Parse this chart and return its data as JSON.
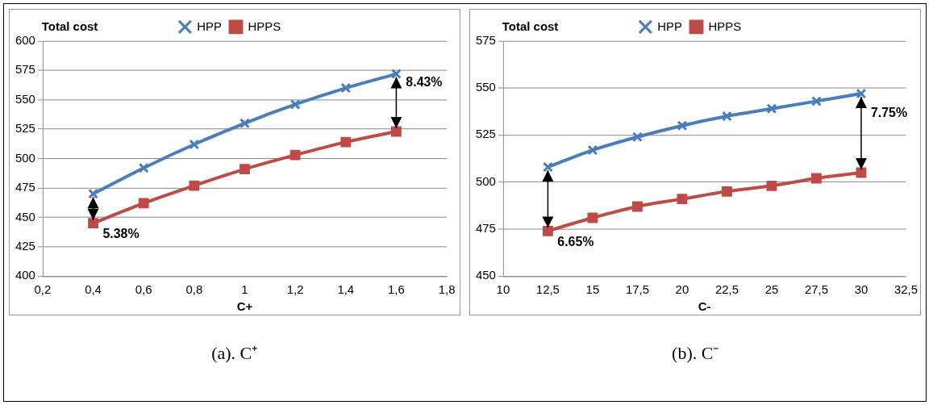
{
  "chart_data": [
    {
      "type": "line",
      "title": "(a). C⁺",
      "xlabel": "C+",
      "ylabel": "Total cost",
      "x": [
        0.4,
        0.6,
        0.8,
        1,
        1.2,
        1.4,
        1.6
      ],
      "series": [
        {
          "name": "HPP",
          "color": "#4a7ebb",
          "marker": "cross",
          "values": [
            470,
            492,
            512,
            530,
            546,
            560,
            572
          ]
        },
        {
          "name": "HPPS",
          "color": "#be4b48",
          "marker": "square",
          "values": [
            445,
            462,
            477,
            491,
            503,
            514,
            523
          ]
        }
      ],
      "xlim": [
        0.2,
        1.8
      ],
      "xticks": [
        {
          "value": 0.2,
          "label": "0,2"
        },
        {
          "value": 0.4,
          "label": "0,4"
        },
        {
          "value": 0.6,
          "label": "0,6"
        },
        {
          "value": 0.8,
          "label": "0,8"
        },
        1,
        {
          "value": 1.2,
          "label": "1,2"
        },
        {
          "value": 1.4,
          "label": "1,4"
        },
        {
          "value": 1.6,
          "label": "1,6"
        },
        {
          "value": 1.8,
          "label": "1,8"
        }
      ],
      "ylim": [
        400,
        600
      ],
      "yticks": [
        400,
        425,
        450,
        475,
        500,
        525,
        550,
        575,
        600
      ],
      "grid": "y",
      "legend": "top",
      "line_style": "solid",
      "annotations": [
        {
          "text": "5.38%",
          "x": 0.4,
          "y": 445
        },
        {
          "text": "8.43%",
          "x": 1.6,
          "y": 523
        }
      ]
    },
    {
      "type": "line",
      "title": "(b). C⁻",
      "xlabel": "C-",
      "ylabel": "Total cost",
      "x": [
        12.5,
        15,
        17.5,
        20,
        22.5,
        25,
        27.5,
        30
      ],
      "series": [
        {
          "name": "HPP",
          "color": "#4a7ebb",
          "marker": "cross",
          "values": [
            508,
            517,
            524,
            530,
            535,
            539,
            543,
            547
          ]
        },
        {
          "name": "HPPS",
          "color": "#be4b48",
          "marker": "square",
          "values": [
            474,
            481,
            487,
            491,
            495,
            498,
            502,
            505
          ]
        }
      ],
      "xlim": [
        10,
        32.5
      ],
      "xticks": [
        10,
        {
          "value": 12.5,
          "label": "12,5"
        },
        15,
        {
          "value": 17.5,
          "label": "17,5"
        },
        20,
        {
          "value": 22.5,
          "label": "22,5"
        },
        25,
        {
          "value": 27.5,
          "label": "27,5"
        },
        30,
        {
          "value": 32.5,
          "label": "32,5"
        }
      ],
      "ylim": [
        450,
        575
      ],
      "yticks": [
        450,
        475,
        500,
        525,
        550,
        575
      ],
      "grid": "y",
      "legend": "top",
      "line_style": "solid",
      "annotations": [
        {
          "text": "6.65%",
          "x": 12.5,
          "y": 474
        },
        {
          "text": "7.75%",
          "x": 30,
          "y": 505
        }
      ]
    }
  ]
}
